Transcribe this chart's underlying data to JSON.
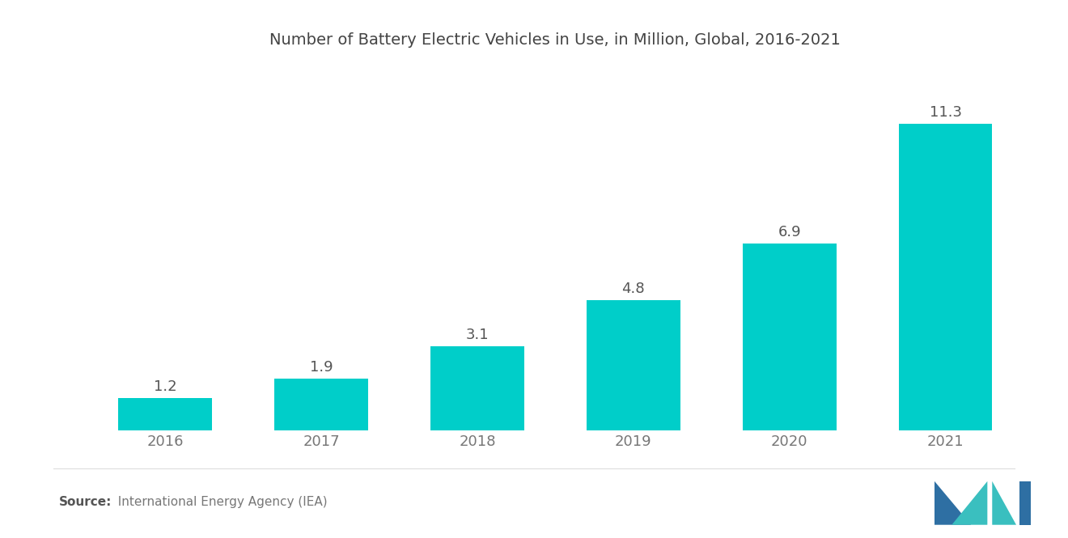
{
  "title": "Number of Battery Electric Vehicles in Use, in Million, Global, 2016-2021",
  "categories": [
    "2016",
    "2017",
    "2018",
    "2019",
    "2020",
    "2021"
  ],
  "values": [
    1.2,
    1.9,
    3.1,
    4.8,
    6.9,
    11.3
  ],
  "bar_color": "#00CEC9",
  "background_color": "#FFFFFF",
  "title_fontsize": 14,
  "label_fontsize": 13,
  "tick_fontsize": 13,
  "source_label_bold": "Source:",
  "source_text": "  International Energy Agency (IEA)",
  "source_fontsize": 11,
  "ylim": [
    0,
    13.5
  ],
  "bar_width": 0.6,
  "label_color": "#555555",
  "tick_color": "#777777",
  "logo_dark_color": "#2E6FA3",
  "logo_teal_color": "#3ABFBF"
}
